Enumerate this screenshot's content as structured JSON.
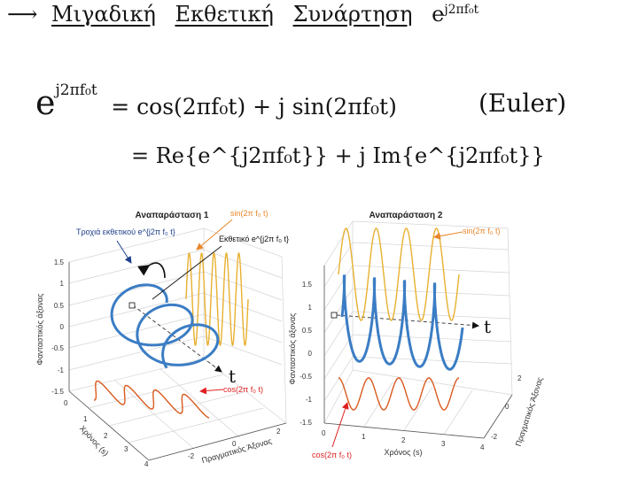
{
  "heading": {
    "arrow": "⟶",
    "words": [
      "Μιγαδική",
      "Εκθετική",
      "Συνάρτηση"
    ],
    "expr": "e",
    "expr_sup": "j2πf₀t"
  },
  "equations": {
    "line1_lhs": "e",
    "line1_lhs_sup": "j2πf₀t",
    "line1_rhs": "= cos(2πf₀t) + j sin(2πf₀t)",
    "line1_note": "(Euler)",
    "line2": "= Re{e^{j2πf₀t}} + j Im{e^{j2πf₀t}}"
  },
  "plot1": {
    "title": "Αναπαράσταση 1",
    "z_label": "Φανταστικός άξονας",
    "x_label": "Χρόνος (s)",
    "y_label": "Πραγματικός Άξονας",
    "z_ticks": [
      "1.5",
      "1",
      "0.5",
      "0",
      "-0.5",
      "-1",
      "-1.5"
    ],
    "x_ticks": [
      "0",
      "1",
      "2",
      "3",
      "4"
    ],
    "y_ticks": [
      "-2",
      "0",
      "2"
    ],
    "ann_helix": "Τροχιά εκθετικού e^{j2π f₀ t}",
    "ann_exp": "Εκθετικό e^{j2π f₀ t}",
    "ann_sin": "sin(2π f₀ t)",
    "ann_cos": "cos(2π f₀ t)",
    "t_label": "t"
  },
  "plot2": {
    "title": "Αναπαράσταση 2",
    "z_label": "Φανταστικός άξονας",
    "x_label": "Χρόνος (s)",
    "y_label": "Πραγματικός Άξονας",
    "z_ticks": [
      "1.5",
      "1",
      "0.5",
      "0",
      "-0.5",
      "-1",
      "-1.5"
    ],
    "x_ticks": [
      "0",
      "1",
      "2",
      "3",
      "4"
    ],
    "y_ticks": [
      "-2",
      "0",
      "2"
    ],
    "ann_sin": "sin(2π f₀ t)",
    "ann_cos": "cos(2π f₀ t)",
    "t_label": "t"
  },
  "colors": {
    "helix": "#3b7dc4",
    "sin": "#e8b030",
    "cos": "#d95a1f",
    "annot_red": "#e02020",
    "ink": "#141414"
  }
}
